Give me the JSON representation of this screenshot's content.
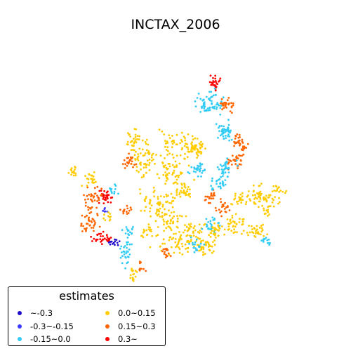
{
  "title": "INCTAX_2006",
  "legend": {
    "title": "estimates",
    "classes": [
      {
        "label": "~-0.3",
        "color": "#1f0fc8"
      },
      {
        "label": "-0.3~-0.15",
        "color": "#3b3bff"
      },
      {
        "label": "-0.15~0.0",
        "color": "#33ccf5"
      },
      {
        "label": "0.0~0.15",
        "color": "#ffcc00"
      },
      {
        "label": "0.15~0.3",
        "color": "#ff6600"
      },
      {
        "label": "0.3~",
        "color": "#ff0000"
      }
    ]
  }
}
